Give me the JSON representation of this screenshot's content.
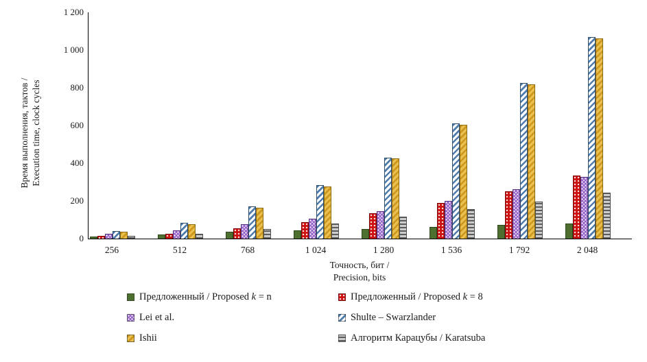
{
  "chart_data": {
    "type": "bar",
    "title": "",
    "categories": [
      "256",
      "512",
      "768",
      "1 024",
      "1 280",
      "1 536",
      "1 792",
      "2 048"
    ],
    "series": [
      {
        "key": "proposed-k-n",
        "name": "Предложенный / Proposed k = n",
        "pattern": "solid-green",
        "color": "#4d7030",
        "values": [
          12,
          22,
          35,
          45,
          52,
          60,
          73,
          80
        ]
      },
      {
        "key": "proposed-k-8",
        "name": "Предложенный / Proposed k = 8",
        "pattern": "red-dots",
        "color": "#ce1212",
        "values": [
          15,
          24,
          55,
          87,
          133,
          188,
          252,
          333
        ]
      },
      {
        "key": "lei-et-al",
        "name": "Lei et al.",
        "pattern": "purple-dots",
        "color": "#9763c9",
        "values": [
          25,
          43,
          76,
          105,
          147,
          200,
          260,
          326
        ]
      },
      {
        "key": "shulte-swarzlander",
        "name": "Shulte – Swarzlander",
        "pattern": "blue-diagonal",
        "color": "#4e7dad",
        "values": [
          40,
          85,
          170,
          285,
          430,
          610,
          825,
          1070
        ]
      },
      {
        "key": "ishii",
        "name": "Ishii",
        "pattern": "gold-diagonal",
        "color": "#d9a62e",
        "values": [
          35,
          78,
          163,
          278,
          425,
          605,
          818,
          1060
        ]
      },
      {
        "key": "karatsuba",
        "name": "Алгоритм Карацубы / Karatsuba",
        "pattern": "gray-horizontal",
        "color": "#8c8c8c",
        "values": [
          15,
          25,
          50,
          80,
          117,
          157,
          198,
          243
        ]
      }
    ],
    "ylabel_line1": "Время выполнения, тактов /",
    "ylabel_line2": "Execution time, clock cycles",
    "xlabel_line1": "Точность, бит /",
    "xlabel_line2": "Precision, bits",
    "ylim": [
      0,
      1200
    ],
    "ytick_step": 200,
    "yticks": [
      "0",
      "200",
      "400",
      "600",
      "800",
      "1 000",
      "1 200"
    ],
    "grid": false,
    "legend_position": "bottom"
  },
  "legend": {
    "items": [
      {
        "prefix": "Предложенный / Proposed ",
        "italic": "k",
        "suffix": " = n",
        "pattern": "solid-green"
      },
      {
        "prefix": "Предложенный / Proposed ",
        "italic": "k",
        "suffix": " = 8",
        "pattern": "red-dots"
      },
      {
        "prefix": "Lei et al.",
        "italic": "",
        "suffix": "",
        "pattern": "purple-dots"
      },
      {
        "prefix": "Shulte – Swarzlander",
        "italic": "",
        "suffix": "",
        "pattern": "blue-diagonal"
      },
      {
        "prefix": "Ishii",
        "italic": "",
        "suffix": "",
        "pattern": "gold-diagonal"
      },
      {
        "prefix": "Алгоритм Карацубы / Karatsuba",
        "italic": "",
        "suffix": "",
        "pattern": "gray-horizontal"
      }
    ]
  }
}
